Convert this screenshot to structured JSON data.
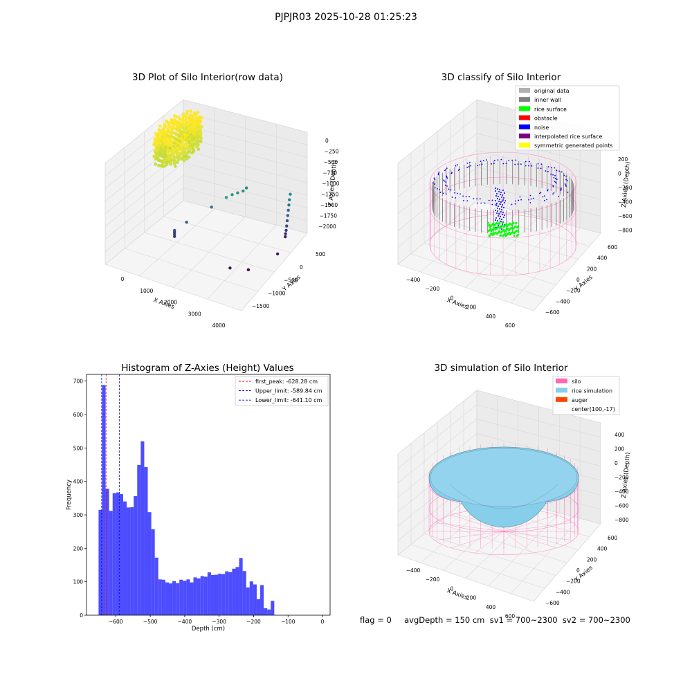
{
  "figure": {
    "title": "PJPJR03 2025-10-28 01:25:23",
    "status_text": "flag = 0     avgDepth = 150 cm  sv1 = 700~2300  sv2 = 700~2300"
  },
  "chart_data": [
    {
      "type": "scatter",
      "projection": "3d",
      "title": "3D Plot of Silo Interior(row data)",
      "xlabel": "X Axies",
      "ylabel": "Y Axies",
      "zlabel": "Z Axies (Depth)",
      "x_ticks": [
        "0",
        "1000",
        "2000",
        "3000",
        "4000"
      ],
      "y_ticks": [
        "500",
        "0",
        "−500",
        "−1000",
        "−1500"
      ],
      "z_ticks": [
        "0",
        "−250",
        "−500",
        "−750",
        "−1000",
        "−1250",
        "−1500",
        "−1750",
        "−2000"
      ],
      "xlim": [
        -600,
        4500
      ],
      "ylim": [
        -1700,
        700
      ],
      "zlim": [
        -2150,
        50
      ],
      "colormap": "viridis",
      "grid": true,
      "points": [
        {
          "x": 950,
          "y": -800,
          "z": -1660
        },
        {
          "x": 950,
          "y": -800,
          "z": -1700
        },
        {
          "x": 950,
          "y": -800,
          "z": -1740
        },
        {
          "x": 950,
          "y": -800,
          "z": -1790
        },
        {
          "x": 1300,
          "y": -700,
          "z": -1480
        },
        {
          "x": 1800,
          "y": -300,
          "z": -1320
        },
        {
          "x": 2500,
          "y": -400,
          "z": -930
        },
        {
          "x": 2500,
          "y": -200,
          "z": -1000
        },
        {
          "x": 2600,
          "y": -100,
          "z": -1010
        },
        {
          "x": 2700,
          "y": 0,
          "z": -1020
        },
        {
          "x": 2600,
          "y": 200,
          "z": -1100
        },
        {
          "x": 4200,
          "y": 350,
          "z": -1100
        },
        {
          "x": 4200,
          "y": 320,
          "z": -1200
        },
        {
          "x": 4200,
          "y": 300,
          "z": -1300
        },
        {
          "x": 4200,
          "y": 280,
          "z": -1400
        },
        {
          "x": 4200,
          "y": 260,
          "z": -1500
        },
        {
          "x": 4200,
          "y": 240,
          "z": -1600
        },
        {
          "x": 4200,
          "y": 220,
          "z": -1700
        },
        {
          "x": 4200,
          "y": 200,
          "z": -1780
        },
        {
          "x": 4200,
          "y": 180,
          "z": -1840
        },
        {
          "x": 4200,
          "y": 170,
          "z": -1900
        },
        {
          "x": 4300,
          "y": -200,
          "z": -2000
        },
        {
          "x": 3700,
          "y": -700,
          "z": -2100
        },
        {
          "x": 3100,
          "y": -800,
          "z": -2100
        }
      ],
      "cluster": {
        "x_range": [
          -500,
          700
        ],
        "y_range": [
          -600,
          600
        ],
        "z_range": [
          -600,
          0
        ]
      }
    },
    {
      "type": "scatter",
      "projection": "3d",
      "title": "3D classify of Silo Interior",
      "xlabel": "X Axies",
      "ylabel": "Y Axies",
      "zlabel": "Z Axies (Depth)",
      "x_ticks": [
        "−400",
        "−200",
        "0",
        "200",
        "400",
        "600"
      ],
      "y_ticks": [
        "600",
        "400",
        "200",
        "0",
        "−200",
        "−400",
        "−600"
      ],
      "z_ticks": [
        "200",
        "0",
        "−200",
        "−400",
        "−600",
        "−800"
      ],
      "legend_position": "upper right",
      "legend": [
        {
          "label": "original data",
          "color": "#b0b0b0"
        },
        {
          "label": "inner wall",
          "color": "#808080"
        },
        {
          "label": "rice surface",
          "color": "#00ff00"
        },
        {
          "label": "obstacle",
          "color": "#ff0000"
        },
        {
          "label": "noise",
          "color": "#0000ff"
        },
        {
          "label": "interpolated rice surface",
          "color": "#800080"
        },
        {
          "label": "symmetric generated points",
          "color": "#ffff00"
        }
      ],
      "wireframe_color": "#ff69b4"
    },
    {
      "type": "bar",
      "title": "Histogram of Z-Axies (Height) Values",
      "xlabel": "Depth (cm)",
      "ylabel": "Frequency",
      "xlim": [
        -685,
        22
      ],
      "ylim": [
        0,
        720
      ],
      "x_ticks": [
        -600,
        -500,
        -400,
        -300,
        -200,
        -100,
        0
      ],
      "x_tick_labels": [
        "−600",
        "−500",
        "−400",
        "−300",
        "−200",
        "−100",
        "0"
      ],
      "y_ticks": [
        0,
        100,
        200,
        300,
        400,
        500,
        600,
        700
      ],
      "bar_color": "#4d4dff",
      "bins_start": -650,
      "bin_width": 10.2,
      "values": [
        315,
        688,
        378,
        312,
        365,
        367,
        362,
        340,
        322,
        323,
        356,
        449,
        520,
        443,
        308,
        257,
        172,
        107,
        106,
        98,
        95,
        102,
        96,
        106,
        103,
        107,
        98,
        113,
        110,
        117,
        115,
        128,
        120,
        121,
        124,
        123,
        131,
        129,
        139,
        144,
        171,
        132,
        83,
        101,
        92,
        48,
        90,
        21,
        17,
        43
      ],
      "legend_position": "upper right",
      "lines": [
        {
          "label": "first_peak: -628.28 cm",
          "x": -628.28,
          "color": "#ff0000"
        },
        {
          "label": "Upper_limit: -589.84 cm",
          "x": -589.84,
          "color": "#0000ff"
        },
        {
          "label": "Lower_limit: -641.10 cm",
          "x": -641.1,
          "color": "#0000ff"
        }
      ]
    },
    {
      "type": "surface",
      "projection": "3d",
      "title": "3D simulation of Silo Interior",
      "xlabel": "X Axies",
      "ylabel": "Y Axies",
      "zlabel": "Z Axies (Depth)",
      "x_ticks": [
        "−400",
        "−200",
        "0",
        "200",
        "400",
        "600"
      ],
      "y_ticks": [
        "600",
        "400",
        "200",
        "0",
        "−200",
        "−400",
        "−600"
      ],
      "z_ticks": [
        "400",
        "200",
        "0",
        "−200",
        "−400",
        "−600",
        "−800"
      ],
      "legend_position": "upper right",
      "legend": [
        {
          "label": "silo",
          "color": "#ff69b4",
          "swatch": true
        },
        {
          "label": "rice simulation",
          "color": "#87ceeb",
          "swatch": true
        },
        {
          "label": "auger",
          "color": "#ff4500",
          "swatch": true
        },
        {
          "label": "center(100,-17)",
          "color": "#ffffff",
          "swatch": false
        }
      ]
    }
  ]
}
